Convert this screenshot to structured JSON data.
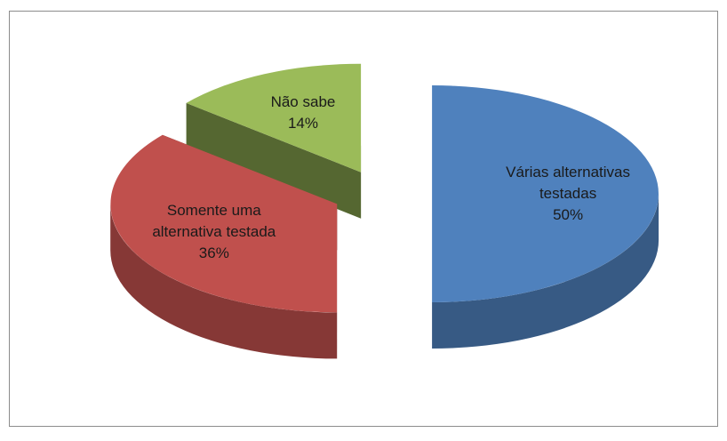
{
  "chart_data": {
    "type": "pie",
    "categories": [
      "Várias alternativas testadas",
      "Somente uma alternativa testada",
      "Não sabe"
    ],
    "values": [
      50,
      36,
      14
    ],
    "value_labels": [
      "50%",
      "36%",
      "14%"
    ],
    "colors": [
      "#4f81bd",
      "#c0504d",
      "#9bbb59"
    ]
  }
}
